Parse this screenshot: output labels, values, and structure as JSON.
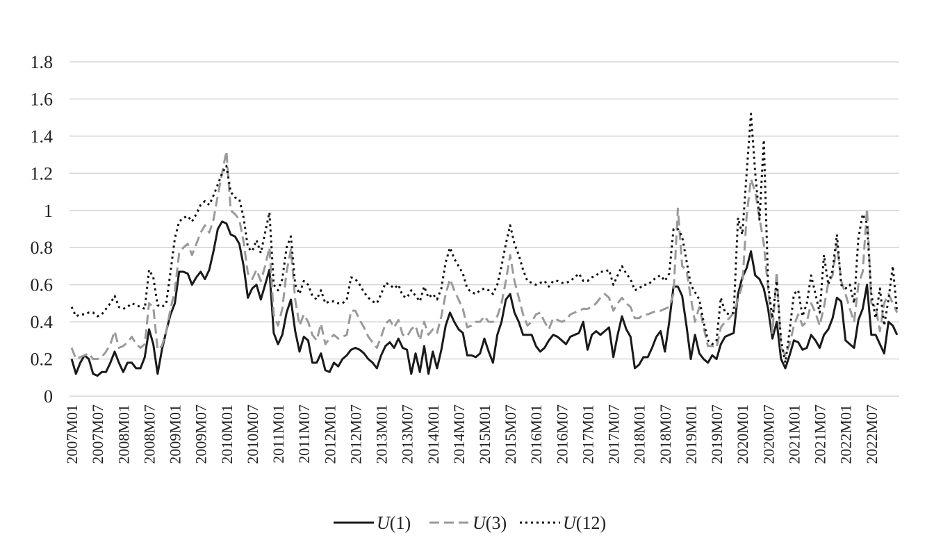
{
  "chart_data": {
    "type": "line",
    "title": "",
    "xlabel": "",
    "ylabel": "",
    "ylim": [
      0,
      1.8
    ],
    "y_ticks": [
      "0",
      "0.2",
      "0.4",
      "0.6",
      "0.8",
      "1",
      "1.2",
      "1.4",
      "1.6",
      "1.8"
    ],
    "x_start": "2007M01",
    "x_end": "2022M12",
    "x_tick_labels": [
      "2007M01",
      "2007M07",
      "2008M01",
      "2008M07",
      "2009M01",
      "2009M07",
      "2010M01",
      "2010M07",
      "2011M01",
      "2011M07",
      "2012M01",
      "2012M07",
      "2013M01",
      "2013M07",
      "2014M01",
      "2014M07",
      "2015M01",
      "2015M07",
      "2016M01",
      "2016M07",
      "2017M01",
      "2017M07",
      "2018M01",
      "2018M07",
      "2019M01",
      "2019M07",
      "2020M01",
      "2020M07",
      "2021M01",
      "2021M07",
      "2022M01",
      "2022M07"
    ],
    "grid": true,
    "legend_position": "bottom-center",
    "series": [
      {
        "name": "U(1)",
        "name_italic": "U",
        "name_suffix": "(1)",
        "style": "solid",
        "color": "#1a1a1a",
        "values": [
          0.2,
          0.12,
          0.18,
          0.22,
          0.2,
          0.12,
          0.11,
          0.13,
          0.13,
          0.18,
          0.24,
          0.18,
          0.13,
          0.18,
          0.18,
          0.15,
          0.15,
          0.21,
          0.36,
          0.28,
          0.12,
          0.25,
          0.35,
          0.44,
          0.5,
          0.67,
          0.67,
          0.66,
          0.6,
          0.64,
          0.67,
          0.63,
          0.68,
          0.78,
          0.9,
          0.94,
          0.93,
          0.87,
          0.86,
          0.82,
          0.7,
          0.53,
          0.58,
          0.6,
          0.52,
          0.6,
          0.68,
          0.34,
          0.28,
          0.33,
          0.45,
          0.52,
          0.35,
          0.24,
          0.32,
          0.3,
          0.18,
          0.18,
          0.23,
          0.14,
          0.13,
          0.18,
          0.16,
          0.2,
          0.22,
          0.25,
          0.26,
          0.25,
          0.23,
          0.2,
          0.18,
          0.15,
          0.22,
          0.27,
          0.29,
          0.26,
          0.31,
          0.26,
          0.25,
          0.12,
          0.23,
          0.13,
          0.27,
          0.12,
          0.24,
          0.15,
          0.25,
          0.38,
          0.45,
          0.4,
          0.36,
          0.34,
          0.22,
          0.22,
          0.21,
          0.23,
          0.31,
          0.24,
          0.18,
          0.33,
          0.4,
          0.52,
          0.55,
          0.45,
          0.4,
          0.33,
          0.33,
          0.33,
          0.27,
          0.24,
          0.26,
          0.3,
          0.33,
          0.32,
          0.3,
          0.28,
          0.32,
          0.33,
          0.34,
          0.4,
          0.25,
          0.33,
          0.35,
          0.33,
          0.35,
          0.37,
          0.21,
          0.33,
          0.43,
          0.36,
          0.32,
          0.15,
          0.17,
          0.21,
          0.21,
          0.26,
          0.32,
          0.35,
          0.24,
          0.4,
          0.59,
          0.59,
          0.54,
          0.38,
          0.2,
          0.33,
          0.23,
          0.2,
          0.18,
          0.22,
          0.2,
          0.28,
          0.32,
          0.33,
          0.34,
          0.55,
          0.64,
          0.69,
          0.78,
          0.65,
          0.63,
          0.58,
          0.47,
          0.31,
          0.4,
          0.2,
          0.15,
          0.22,
          0.3,
          0.29,
          0.25,
          0.26,
          0.33,
          0.3,
          0.26,
          0.33,
          0.36,
          0.42,
          0.53,
          0.51,
          0.3,
          0.28,
          0.26,
          0.41,
          0.47,
          0.6,
          0.33,
          0.33,
          0.28,
          0.23,
          0.4,
          0.38,
          0.33
        ]
      },
      {
        "name": "U(3)",
        "name_italic": "U",
        "name_suffix": "(3)",
        "style": "dashed",
        "color": "#9a9a9a",
        "values": [
          0.26,
          0.2,
          0.21,
          0.22,
          0.23,
          0.2,
          0.2,
          0.21,
          0.24,
          0.28,
          0.35,
          0.26,
          0.27,
          0.29,
          0.32,
          0.28,
          0.26,
          0.28,
          0.5,
          0.48,
          0.25,
          0.27,
          0.35,
          0.47,
          0.57,
          0.77,
          0.8,
          0.82,
          0.76,
          0.82,
          0.88,
          0.92,
          0.88,
          0.95,
          1.08,
          1.2,
          1.32,
          1.0,
          0.98,
          0.95,
          0.83,
          0.66,
          0.63,
          0.68,
          0.62,
          0.7,
          0.8,
          0.44,
          0.38,
          0.47,
          0.67,
          0.79,
          0.52,
          0.38,
          0.44,
          0.4,
          0.33,
          0.3,
          0.39,
          0.28,
          0.31,
          0.33,
          0.31,
          0.32,
          0.33,
          0.46,
          0.46,
          0.41,
          0.37,
          0.32,
          0.29,
          0.26,
          0.32,
          0.39,
          0.41,
          0.37,
          0.41,
          0.33,
          0.32,
          0.36,
          0.38,
          0.3,
          0.4,
          0.33,
          0.36,
          0.34,
          0.43,
          0.55,
          0.63,
          0.57,
          0.52,
          0.47,
          0.37,
          0.38,
          0.4,
          0.4,
          0.43,
          0.4,
          0.4,
          0.43,
          0.5,
          0.62,
          0.76,
          0.62,
          0.53,
          0.44,
          0.38,
          0.4,
          0.44,
          0.45,
          0.4,
          0.36,
          0.42,
          0.41,
          0.4,
          0.41,
          0.44,
          0.45,
          0.46,
          0.47,
          0.47,
          0.48,
          0.5,
          0.53,
          0.55,
          0.53,
          0.46,
          0.5,
          0.53,
          0.5,
          0.48,
          0.42,
          0.42,
          0.44,
          0.44,
          0.45,
          0.46,
          0.46,
          0.47,
          0.48,
          0.55,
          1.01,
          0.7,
          0.68,
          0.53,
          0.4,
          0.48,
          0.37,
          0.27,
          0.27,
          0.26,
          0.37,
          0.4,
          0.42,
          0.45,
          0.52,
          0.6,
          0.97,
          1.17,
          1.1,
          0.96,
          0.82,
          0.58,
          0.34,
          0.67,
          0.26,
          0.22,
          0.28,
          0.38,
          0.44,
          0.38,
          0.4,
          0.5,
          0.45,
          0.38,
          0.48,
          0.61,
          0.65,
          0.82,
          0.62,
          0.55,
          0.47,
          0.4,
          0.6,
          0.67,
          1.01,
          0.5,
          0.48,
          0.35,
          0.5,
          0.55,
          0.5,
          0.45
        ]
      },
      {
        "name": "U(12)",
        "name_italic": "U",
        "name_suffix": "(12)",
        "style": "dotted",
        "color": "#111111",
        "values": [
          0.48,
          0.43,
          0.44,
          0.44,
          0.45,
          0.45,
          0.43,
          0.44,
          0.47,
          0.5,
          0.54,
          0.48,
          0.47,
          0.48,
          0.5,
          0.49,
          0.48,
          0.47,
          0.68,
          0.64,
          0.49,
          0.48,
          0.5,
          0.67,
          0.85,
          0.94,
          0.96,
          0.97,
          0.94,
          0.98,
          1.03,
          1.05,
          1.03,
          1.08,
          1.14,
          1.2,
          1.24,
          1.1,
          1.07,
          1.06,
          0.96,
          0.8,
          0.78,
          0.84,
          0.77,
          0.88,
          0.99,
          0.6,
          0.57,
          0.63,
          0.8,
          0.86,
          0.6,
          0.55,
          0.62,
          0.6,
          0.54,
          0.52,
          0.57,
          0.5,
          0.51,
          0.51,
          0.5,
          0.5,
          0.52,
          0.64,
          0.63,
          0.6,
          0.56,
          0.53,
          0.51,
          0.5,
          0.55,
          0.61,
          0.6,
          0.58,
          0.6,
          0.54,
          0.53,
          0.57,
          0.54,
          0.51,
          0.59,
          0.53,
          0.55,
          0.52,
          0.58,
          0.72,
          0.8,
          0.74,
          0.7,
          0.66,
          0.58,
          0.56,
          0.55,
          0.57,
          0.58,
          0.57,
          0.55,
          0.6,
          0.7,
          0.82,
          0.92,
          0.82,
          0.76,
          0.68,
          0.62,
          0.61,
          0.6,
          0.61,
          0.62,
          0.59,
          0.62,
          0.62,
          0.61,
          0.61,
          0.62,
          0.64,
          0.66,
          0.62,
          0.62,
          0.64,
          0.65,
          0.67,
          0.67,
          0.68,
          0.6,
          0.65,
          0.7,
          0.66,
          0.63,
          0.57,
          0.58,
          0.6,
          0.6,
          0.62,
          0.64,
          0.65,
          0.62,
          0.66,
          0.9,
          0.9,
          0.86,
          0.73,
          0.6,
          0.56,
          0.52,
          0.4,
          0.3,
          0.28,
          0.3,
          0.53,
          0.45,
          0.44,
          0.45,
          0.96,
          0.87,
          1.2,
          1.52,
          1.2,
          0.95,
          1.38,
          0.6,
          0.42,
          0.62,
          0.3,
          0.18,
          0.35,
          0.55,
          0.57,
          0.43,
          0.5,
          0.65,
          0.55,
          0.45,
          0.76,
          0.6,
          0.68,
          0.87,
          0.6,
          0.58,
          0.6,
          0.5,
          0.85,
          0.98,
          0.93,
          0.55,
          0.42,
          0.58,
          0.38,
          0.52,
          0.7,
          0.45
        ]
      }
    ]
  }
}
